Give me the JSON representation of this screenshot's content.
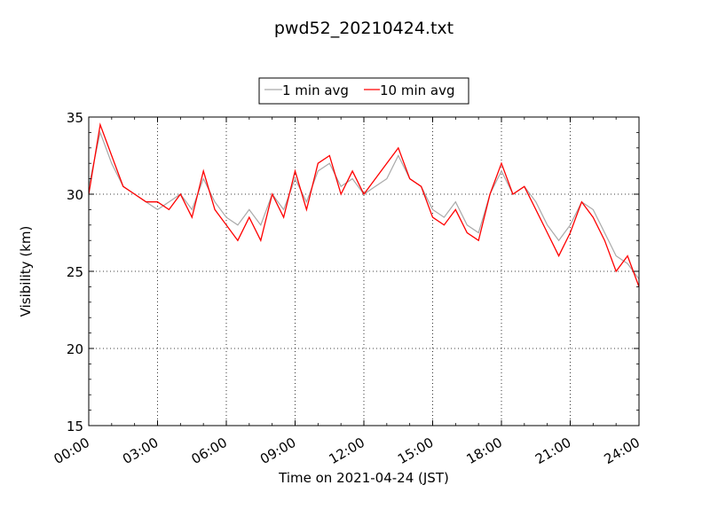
{
  "chart_data": {
    "type": "line",
    "title": "pwd52_20210424.txt",
    "xlabel": "Time on 2021-04-24 (JST)",
    "ylabel": "Visibility (km)",
    "xlim": [
      "00:00",
      "24:00"
    ],
    "ylim": [
      15,
      35
    ],
    "x_ticks": [
      "00:00",
      "03:00",
      "06:00",
      "09:00",
      "12:00",
      "15:00",
      "18:00",
      "21:00",
      "24:00"
    ],
    "y_ticks": [
      "15",
      "20",
      "25",
      "30",
      "35"
    ],
    "grid": true,
    "legend_position": "top-center",
    "series": [
      {
        "name": "1 min avg",
        "color": "#a9a9a9",
        "x_hours": [
          0.0,
          0.5,
          1.0,
          1.5,
          2.0,
          2.5,
          3.0,
          3.5,
          4.0,
          4.5,
          5.0,
          5.5,
          6.0,
          6.5,
          7.0,
          7.5,
          8.0,
          8.5,
          9.0,
          9.5,
          10.0,
          10.5,
          11.0,
          11.5,
          12.0,
          12.5,
          13.0,
          13.5,
          14.0,
          14.5,
          15.0,
          15.5,
          16.0,
          16.5,
          17.0,
          17.5,
          18.0,
          18.5,
          19.0,
          19.5,
          20.0,
          20.5,
          21.0,
          21.5,
          22.0,
          22.5,
          23.0,
          23.5,
          24.0
        ],
        "values": [
          30.5,
          34.0,
          32.0,
          30.5,
          30.0,
          29.5,
          29.0,
          29.5,
          30.0,
          29.0,
          31.0,
          29.5,
          28.5,
          28.0,
          29.0,
          28.0,
          30.0,
          29.0,
          31.0,
          29.5,
          31.5,
          32.0,
          30.5,
          31.0,
          30.0,
          30.5,
          31.0,
          32.5,
          31.0,
          30.5,
          29.0,
          28.5,
          29.5,
          28.0,
          27.5,
          30.0,
          31.5,
          30.0,
          30.5,
          29.5,
          28.0,
          27.0,
          28.0,
          29.5,
          29.0,
          27.5,
          26.0,
          25.5,
          24.5
        ]
      },
      {
        "name": "10 min avg",
        "color": "#ff0000",
        "x_hours": [
          0.0,
          0.5,
          1.0,
          1.5,
          2.0,
          2.5,
          3.0,
          3.5,
          4.0,
          4.5,
          5.0,
          5.5,
          6.0,
          6.5,
          7.0,
          7.5,
          8.0,
          8.5,
          9.0,
          9.5,
          10.0,
          10.5,
          11.0,
          11.5,
          12.0,
          12.5,
          13.0,
          13.5,
          14.0,
          14.5,
          15.0,
          15.5,
          16.0,
          16.5,
          17.0,
          17.5,
          18.0,
          18.5,
          19.0,
          19.5,
          20.0,
          20.5,
          21.0,
          21.5,
          22.0,
          22.5,
          23.0,
          23.5,
          24.0
        ],
        "values": [
          30.0,
          34.5,
          32.5,
          30.5,
          30.0,
          29.5,
          29.5,
          29.0,
          30.0,
          28.5,
          31.5,
          29.0,
          28.0,
          27.0,
          28.5,
          27.0,
          30.0,
          28.5,
          31.5,
          29.0,
          32.0,
          32.5,
          30.0,
          31.5,
          30.0,
          31.0,
          32.0,
          33.0,
          31.0,
          30.5,
          28.5,
          28.0,
          29.0,
          27.5,
          27.0,
          30.0,
          32.0,
          30.0,
          30.5,
          29.0,
          27.5,
          26.0,
          27.5,
          29.5,
          28.5,
          27.0,
          25.0,
          26.0,
          24.0
        ]
      }
    ]
  }
}
